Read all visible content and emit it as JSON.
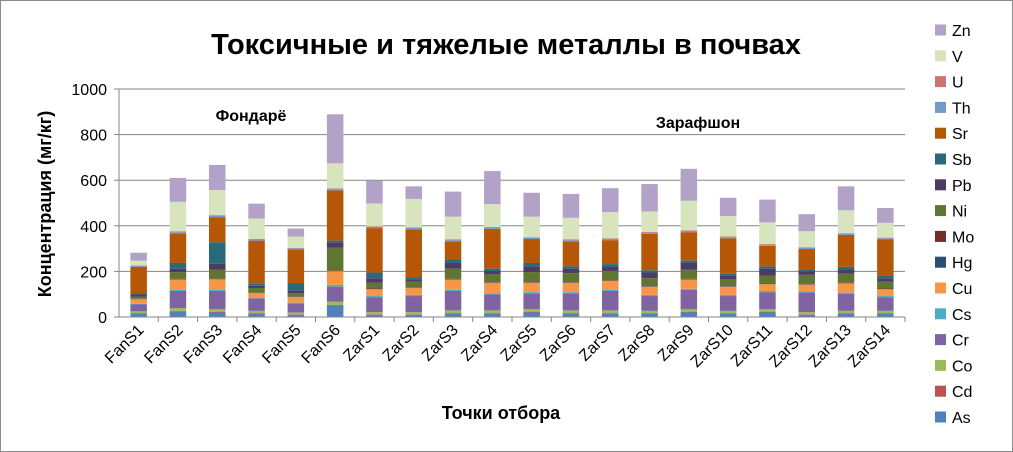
{
  "chart_data": {
    "type": "bar",
    "stacked": true,
    "title": "Токсичные и тяжелые металлы в почвах",
    "xlabel": "Точки отбора",
    "ylabel": "Концентрация (мг/кг)",
    "ylim": [
      0,
      1000
    ],
    "yticks": [
      "0",
      "200",
      "400",
      "600",
      "800",
      "1000"
    ],
    "grid": true,
    "legend_position": "right",
    "annotations": [
      {
        "text": "Фондарё",
        "category": "FanS3"
      },
      {
        "text": "Зарафшон",
        "category": "ZarS9"
      }
    ],
    "categories": [
      "FanS1",
      "FanS2",
      "FanS3",
      "FanS4",
      "FanS5",
      "FanS6",
      "ZarS1",
      "ZarS2",
      "ZarS3",
      "ZarS4",
      "ZarS5",
      "ZarS6",
      "ZarS7",
      "ZarS8",
      "ZarS9",
      "ZarS10",
      "ZarS11",
      "ZarS12",
      "ZarS13",
      "ZarS14"
    ],
    "series": [
      {
        "name": "As",
        "color": "#4F81BD",
        "values": [
          15,
          25,
          20,
          15,
          10,
          50,
          10,
          10,
          15,
          15,
          20,
          15,
          15,
          15,
          20,
          15,
          20,
          10,
          15,
          15
        ]
      },
      {
        "name": "Cd",
        "color": "#C0504D",
        "values": [
          2,
          2,
          2,
          2,
          2,
          3,
          2,
          2,
          2,
          2,
          2,
          2,
          2,
          2,
          2,
          2,
          2,
          2,
          2,
          2
        ]
      },
      {
        "name": "Co",
        "color": "#9BBB59",
        "values": [
          8,
          12,
          12,
          10,
          8,
          15,
          10,
          10,
          12,
          12,
          12,
          12,
          12,
          10,
          12,
          10,
          12,
          10,
          10,
          10
        ]
      },
      {
        "name": "Cr",
        "color": "#8064A2",
        "values": [
          30,
          75,
          80,
          55,
          40,
          65,
          65,
          70,
          85,
          70,
          70,
          75,
          85,
          65,
          85,
          65,
          75,
          85,
          75,
          60
        ]
      },
      {
        "name": "Cs",
        "color": "#4BACC6",
        "values": [
          3,
          5,
          6,
          3,
          3,
          8,
          5,
          5,
          5,
          5,
          5,
          5,
          5,
          5,
          5,
          5,
          5,
          5,
          5,
          5
        ]
      },
      {
        "name": "Cu",
        "color": "#F79646",
        "values": [
          20,
          45,
          45,
          20,
          25,
          60,
          30,
          30,
          45,
          45,
          40,
          40,
          40,
          35,
          40,
          35,
          30,
          30,
          40,
          30
        ]
      },
      {
        "name": "Hg",
        "color": "#2C4D75",
        "values": [
          1,
          1,
          1,
          1,
          1,
          1,
          1,
          1,
          1,
          1,
          1,
          1,
          1,
          1,
          1,
          1,
          1,
          1,
          1,
          1
        ]
      },
      {
        "name": "Mo",
        "color": "#772C2A",
        "values": [
          1,
          2,
          2,
          1,
          1,
          3,
          2,
          2,
          2,
          2,
          2,
          2,
          2,
          2,
          2,
          2,
          2,
          2,
          2,
          2
        ]
      },
      {
        "name": "Ni",
        "color": "#5F7530",
        "values": [
          10,
          30,
          40,
          20,
          15,
          100,
          25,
          25,
          45,
          35,
          45,
          40,
          40,
          35,
          40,
          30,
          35,
          40,
          40,
          30
        ]
      },
      {
        "name": "Pb",
        "color": "#4D3B62",
        "values": [
          10,
          15,
          25,
          10,
          12,
          20,
          20,
          10,
          25,
          15,
          25,
          20,
          20,
          25,
          30,
          15,
          30,
          15,
          20,
          15
        ]
      },
      {
        "name": "Sb",
        "color": "#276A7C",
        "values": [
          5,
          25,
          95,
          8,
          30,
          10,
          25,
          10,
          15,
          10,
          15,
          10,
          10,
          10,
          10,
          10,
          10,
          8,
          10,
          10
        ]
      },
      {
        "name": "Sr",
        "color": "#B65708",
        "values": [
          115,
          130,
          110,
          190,
          150,
          220,
          195,
          210,
          80,
          175,
          105,
          110,
          105,
          160,
          125,
          155,
          90,
          90,
          140,
          160
        ]
      },
      {
        "name": "Th",
        "color": "#729ACA",
        "values": [
          5,
          5,
          6,
          5,
          4,
          5,
          5,
          5,
          5,
          5,
          5,
          5,
          5,
          5,
          5,
          5,
          5,
          5,
          5,
          5
        ]
      },
      {
        "name": "U",
        "color": "#CD7371",
        "values": [
          2,
          3,
          3,
          2,
          2,
          4,
          3,
          3,
          3,
          3,
          3,
          3,
          3,
          3,
          3,
          3,
          3,
          3,
          3,
          3
        ]
      },
      {
        "name": "V",
        "color": "#D7E4BD",
        "values": [
          20,
          130,
          110,
          90,
          50,
          110,
          100,
          125,
          100,
          100,
          90,
          95,
          115,
          90,
          130,
          90,
          95,
          70,
          100,
          65
        ]
      },
      {
        "name": "Zn",
        "color": "#B3A2C7",
        "values": [
          35,
          105,
          110,
          65,
          35,
          215,
          100,
          55,
          110,
          145,
          105,
          105,
          105,
          120,
          140,
          80,
          100,
          75,
          105,
          65
        ]
      }
    ]
  }
}
